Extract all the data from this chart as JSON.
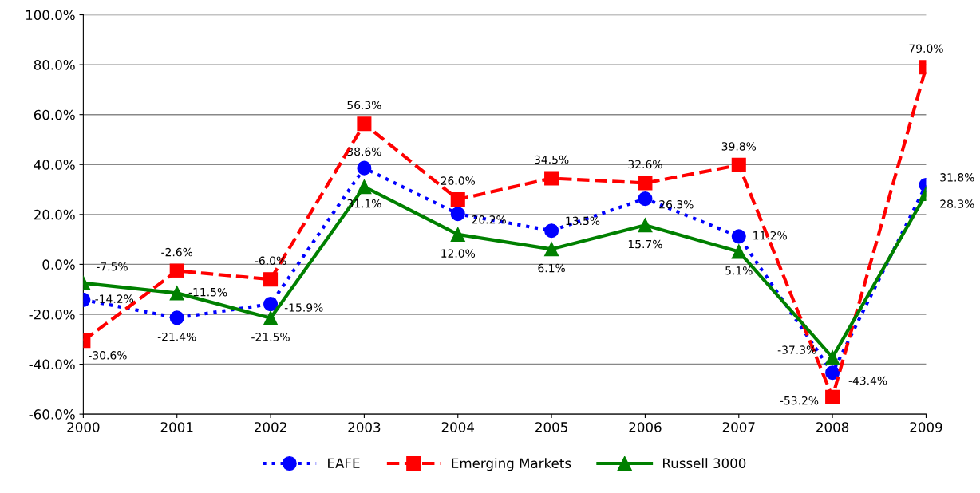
{
  "chart_data": {
    "type": "line",
    "categories": [
      "2000",
      "2001",
      "2002",
      "2003",
      "2004",
      "2005",
      "2006",
      "2007",
      "2008",
      "2009"
    ],
    "series": [
      {
        "name": "EAFE",
        "color": "#0000ff",
        "line_style": "dotted",
        "marker": "circle",
        "values": [
          -14.2,
          -21.4,
          -15.9,
          38.6,
          20.2,
          13.5,
          26.3,
          11.2,
          -43.4,
          31.8
        ],
        "value_labels": [
          "-14.2%",
          "-21.4%",
          "-15.9%",
          "38.6%",
          "20.2%",
          "13.5%",
          "26.3%",
          "11.2%",
          "-43.4%",
          "31.8%"
        ]
      },
      {
        "name": "Emerging Markets",
        "color": "#ff0000",
        "line_style": "dashed",
        "marker": "square",
        "values": [
          -30.6,
          -2.6,
          -6.0,
          56.3,
          26.0,
          34.5,
          32.6,
          39.8,
          -53.2,
          79.0
        ],
        "value_labels": [
          "-30.6%",
          "-2.6%",
          "-6.0%",
          "56.3%",
          "26.0%",
          "34.5%",
          "32.6%",
          "39.8%",
          "-53.2%",
          "79.0%"
        ]
      },
      {
        "name": "Russell 3000",
        "color": "#008000",
        "line_style": "solid",
        "marker": "triangle",
        "values": [
          -7.5,
          -11.5,
          -21.5,
          31.1,
          12.0,
          6.1,
          15.7,
          5.1,
          -37.3,
          28.3
        ],
        "value_labels": [
          "-7.5%",
          "-11.5%",
          "-21.5%",
          "31.1%",
          "12.0%",
          "6.1%",
          "15.7%",
          "5.1%",
          "-37.3%",
          "28.3%"
        ]
      }
    ],
    "ylim": [
      -60,
      100
    ],
    "yticks": [
      {
        "value": -60,
        "label": "-60.0%"
      },
      {
        "value": -40,
        "label": "-40.0%"
      },
      {
        "value": -20,
        "label": "-20.0%"
      },
      {
        "value": 0,
        "label": "0.0%"
      },
      {
        "value": 20,
        "label": "20.0%"
      },
      {
        "value": 40,
        "label": "40.0%"
      },
      {
        "value": 60,
        "label": "60.0%"
      },
      {
        "value": 80,
        "label": "80.0%"
      },
      {
        "value": 100,
        "label": "100.0%"
      }
    ],
    "grid": "y",
    "legend": "bottom"
  }
}
